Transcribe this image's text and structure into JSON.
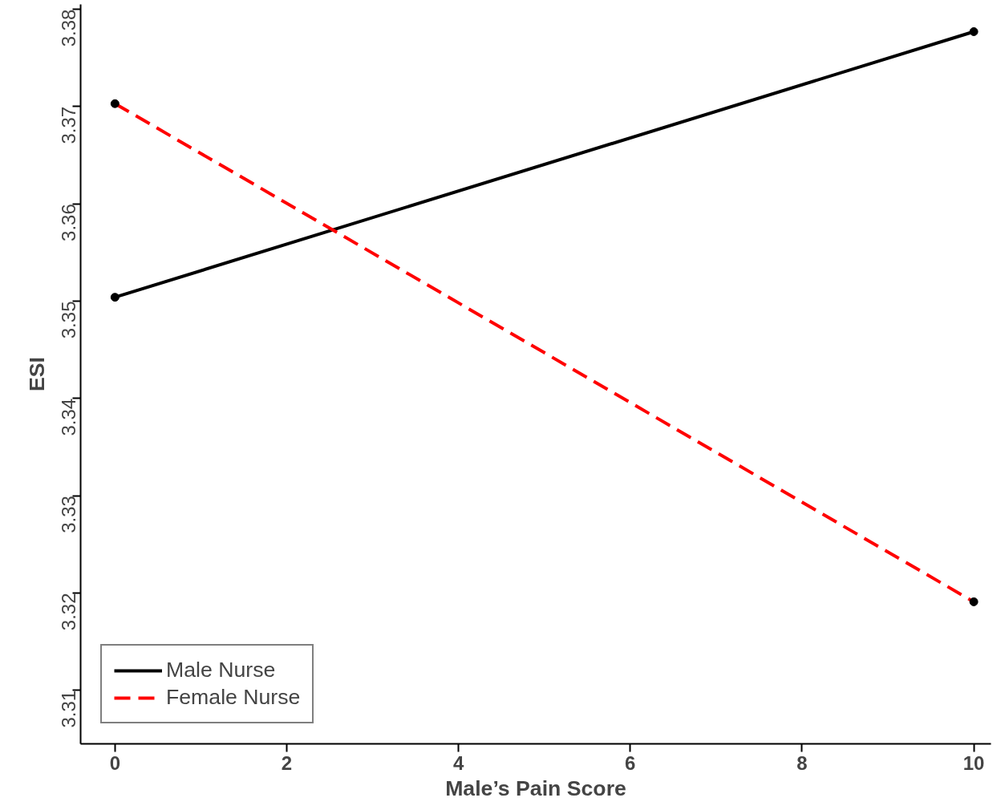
{
  "chart_data": {
    "type": "line",
    "xlabel": "Male’s Pain Score",
    "ylabel": "ESI",
    "x": [
      0,
      10
    ],
    "series": [
      {
        "name": "Male Nurse",
        "color": "#000000",
        "values": [
          3.3504,
          3.3777
        ],
        "line_style": "solid"
      },
      {
        "name": "Female Nurse",
        "color": "#ff0000",
        "values": [
          3.3703,
          3.3191
        ],
        "line_style": "dashed"
      }
    ],
    "xlim": [
      -0.4,
      10.2
    ],
    "ylim": [
      3.3045,
      3.3805
    ],
    "xticks": [
      0,
      2,
      4,
      6,
      8,
      10
    ],
    "yticks": [
      3.31,
      3.32,
      3.33,
      3.34,
      3.35,
      3.36,
      3.37,
      3.38
    ],
    "marker": "circle",
    "legend": "bottom left",
    "grid": false
  }
}
